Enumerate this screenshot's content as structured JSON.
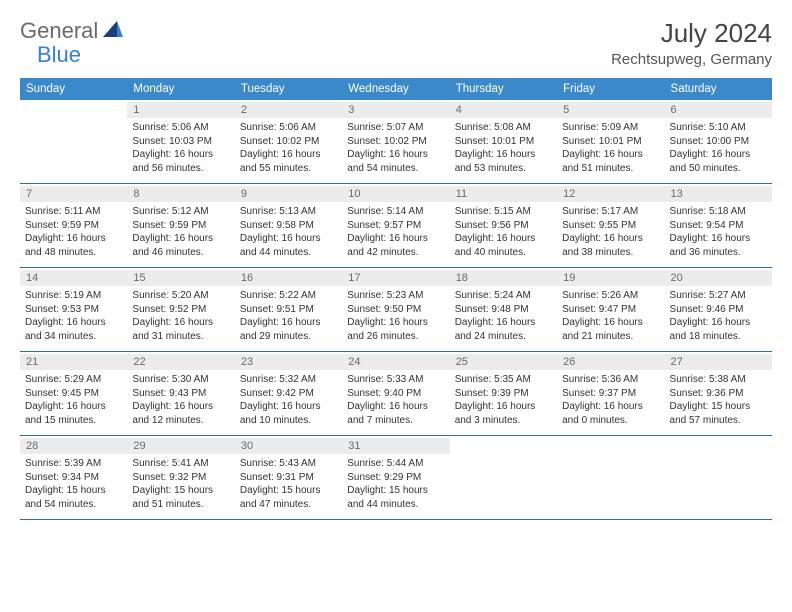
{
  "logo": {
    "part1": "General",
    "part2": "Blue"
  },
  "title": "July 2024",
  "location": "Rechtsupweg, Germany",
  "colors": {
    "header_bg": "#3b89c9",
    "header_text": "#ffffff",
    "daynum_bg": "#ececec",
    "daynum_text": "#6a6a6a",
    "border": "#2f6fa8",
    "logo_gray": "#6b6b6b",
    "logo_blue": "#3b7fc4"
  },
  "day_names": [
    "Sunday",
    "Monday",
    "Tuesday",
    "Wednesday",
    "Thursday",
    "Friday",
    "Saturday"
  ],
  "weeks": [
    [
      {
        "blank": true
      },
      {
        "num": "1",
        "sunrise": "Sunrise: 5:06 AM",
        "sunset": "Sunset: 10:03 PM",
        "day1": "Daylight: 16 hours",
        "day2": "and 56 minutes."
      },
      {
        "num": "2",
        "sunrise": "Sunrise: 5:06 AM",
        "sunset": "Sunset: 10:02 PM",
        "day1": "Daylight: 16 hours",
        "day2": "and 55 minutes."
      },
      {
        "num": "3",
        "sunrise": "Sunrise: 5:07 AM",
        "sunset": "Sunset: 10:02 PM",
        "day1": "Daylight: 16 hours",
        "day2": "and 54 minutes."
      },
      {
        "num": "4",
        "sunrise": "Sunrise: 5:08 AM",
        "sunset": "Sunset: 10:01 PM",
        "day1": "Daylight: 16 hours",
        "day2": "and 53 minutes."
      },
      {
        "num": "5",
        "sunrise": "Sunrise: 5:09 AM",
        "sunset": "Sunset: 10:01 PM",
        "day1": "Daylight: 16 hours",
        "day2": "and 51 minutes."
      },
      {
        "num": "6",
        "sunrise": "Sunrise: 5:10 AM",
        "sunset": "Sunset: 10:00 PM",
        "day1": "Daylight: 16 hours",
        "day2": "and 50 minutes."
      }
    ],
    [
      {
        "num": "7",
        "sunrise": "Sunrise: 5:11 AM",
        "sunset": "Sunset: 9:59 PM",
        "day1": "Daylight: 16 hours",
        "day2": "and 48 minutes."
      },
      {
        "num": "8",
        "sunrise": "Sunrise: 5:12 AM",
        "sunset": "Sunset: 9:59 PM",
        "day1": "Daylight: 16 hours",
        "day2": "and 46 minutes."
      },
      {
        "num": "9",
        "sunrise": "Sunrise: 5:13 AM",
        "sunset": "Sunset: 9:58 PM",
        "day1": "Daylight: 16 hours",
        "day2": "and 44 minutes."
      },
      {
        "num": "10",
        "sunrise": "Sunrise: 5:14 AM",
        "sunset": "Sunset: 9:57 PM",
        "day1": "Daylight: 16 hours",
        "day2": "and 42 minutes."
      },
      {
        "num": "11",
        "sunrise": "Sunrise: 5:15 AM",
        "sunset": "Sunset: 9:56 PM",
        "day1": "Daylight: 16 hours",
        "day2": "and 40 minutes."
      },
      {
        "num": "12",
        "sunrise": "Sunrise: 5:17 AM",
        "sunset": "Sunset: 9:55 PM",
        "day1": "Daylight: 16 hours",
        "day2": "and 38 minutes."
      },
      {
        "num": "13",
        "sunrise": "Sunrise: 5:18 AM",
        "sunset": "Sunset: 9:54 PM",
        "day1": "Daylight: 16 hours",
        "day2": "and 36 minutes."
      }
    ],
    [
      {
        "num": "14",
        "sunrise": "Sunrise: 5:19 AM",
        "sunset": "Sunset: 9:53 PM",
        "day1": "Daylight: 16 hours",
        "day2": "and 34 minutes."
      },
      {
        "num": "15",
        "sunrise": "Sunrise: 5:20 AM",
        "sunset": "Sunset: 9:52 PM",
        "day1": "Daylight: 16 hours",
        "day2": "and 31 minutes."
      },
      {
        "num": "16",
        "sunrise": "Sunrise: 5:22 AM",
        "sunset": "Sunset: 9:51 PM",
        "day1": "Daylight: 16 hours",
        "day2": "and 29 minutes."
      },
      {
        "num": "17",
        "sunrise": "Sunrise: 5:23 AM",
        "sunset": "Sunset: 9:50 PM",
        "day1": "Daylight: 16 hours",
        "day2": "and 26 minutes."
      },
      {
        "num": "18",
        "sunrise": "Sunrise: 5:24 AM",
        "sunset": "Sunset: 9:48 PM",
        "day1": "Daylight: 16 hours",
        "day2": "and 24 minutes."
      },
      {
        "num": "19",
        "sunrise": "Sunrise: 5:26 AM",
        "sunset": "Sunset: 9:47 PM",
        "day1": "Daylight: 16 hours",
        "day2": "and 21 minutes."
      },
      {
        "num": "20",
        "sunrise": "Sunrise: 5:27 AM",
        "sunset": "Sunset: 9:46 PM",
        "day1": "Daylight: 16 hours",
        "day2": "and 18 minutes."
      }
    ],
    [
      {
        "num": "21",
        "sunrise": "Sunrise: 5:29 AM",
        "sunset": "Sunset: 9:45 PM",
        "day1": "Daylight: 16 hours",
        "day2": "and 15 minutes."
      },
      {
        "num": "22",
        "sunrise": "Sunrise: 5:30 AM",
        "sunset": "Sunset: 9:43 PM",
        "day1": "Daylight: 16 hours",
        "day2": "and 12 minutes."
      },
      {
        "num": "23",
        "sunrise": "Sunrise: 5:32 AM",
        "sunset": "Sunset: 9:42 PM",
        "day1": "Daylight: 16 hours",
        "day2": "and 10 minutes."
      },
      {
        "num": "24",
        "sunrise": "Sunrise: 5:33 AM",
        "sunset": "Sunset: 9:40 PM",
        "day1": "Daylight: 16 hours",
        "day2": "and 7 minutes."
      },
      {
        "num": "25",
        "sunrise": "Sunrise: 5:35 AM",
        "sunset": "Sunset: 9:39 PM",
        "day1": "Daylight: 16 hours",
        "day2": "and 3 minutes."
      },
      {
        "num": "26",
        "sunrise": "Sunrise: 5:36 AM",
        "sunset": "Sunset: 9:37 PM",
        "day1": "Daylight: 16 hours",
        "day2": "and 0 minutes."
      },
      {
        "num": "27",
        "sunrise": "Sunrise: 5:38 AM",
        "sunset": "Sunset: 9:36 PM",
        "day1": "Daylight: 15 hours",
        "day2": "and 57 minutes."
      }
    ],
    [
      {
        "num": "28",
        "sunrise": "Sunrise: 5:39 AM",
        "sunset": "Sunset: 9:34 PM",
        "day1": "Daylight: 15 hours",
        "day2": "and 54 minutes."
      },
      {
        "num": "29",
        "sunrise": "Sunrise: 5:41 AM",
        "sunset": "Sunset: 9:32 PM",
        "day1": "Daylight: 15 hours",
        "day2": "and 51 minutes."
      },
      {
        "num": "30",
        "sunrise": "Sunrise: 5:43 AM",
        "sunset": "Sunset: 9:31 PM",
        "day1": "Daylight: 15 hours",
        "day2": "and 47 minutes."
      },
      {
        "num": "31",
        "sunrise": "Sunrise: 5:44 AM",
        "sunset": "Sunset: 9:29 PM",
        "day1": "Daylight: 15 hours",
        "day2": "and 44 minutes."
      },
      {
        "blank": true
      },
      {
        "blank": true
      },
      {
        "blank": true
      }
    ]
  ]
}
